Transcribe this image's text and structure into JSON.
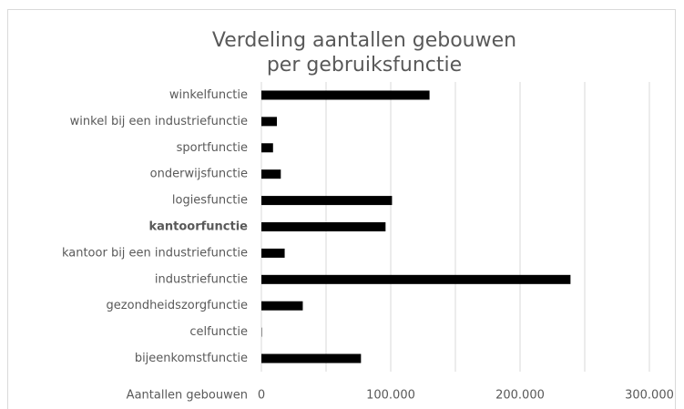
{
  "chart_data": {
    "type": "hbar",
    "title": [
      "Verdeling aantallen gebouwen",
      "per gebruiksfunctie"
    ],
    "xlabel": "Aantallen gebouwen",
    "categories": [
      "winkelfunctie",
      "winkel bij een industriefunctie",
      "sportfunctie",
      "onderwijsfunctie",
      "logiesfunctie",
      "kantoorfunctie",
      "kantoor bij een industriefunctie",
      "industriefunctie",
      "gezondheidszorgfunctie",
      "celfunctie",
      "bijeenkomstfunctie"
    ],
    "values": [
      130000,
      12000,
      9000,
      15000,
      101000,
      96000,
      18000,
      239000,
      32000,
      300,
      77000
    ],
    "color": "#000000",
    "bold_category": 5,
    "xlim": [
      0,
      300000
    ],
    "xticks": [
      0,
      {
        "value": 100000,
        "label": "100.000"
      },
      {
        "value": 200000,
        "label": "200.000"
      },
      {
        "value": 300000,
        "label": "300.000"
      }
    ],
    "xminor": [
      50000,
      150000,
      250000
    ],
    "grid": true
  }
}
